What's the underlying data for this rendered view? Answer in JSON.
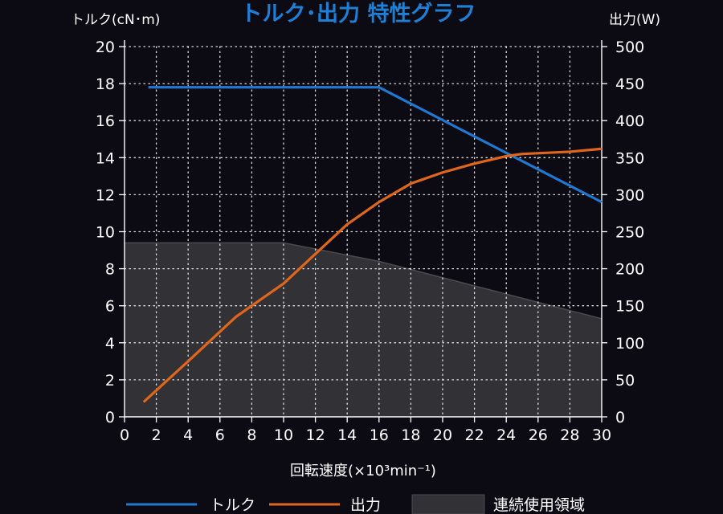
{
  "colors": {
    "background": "#0c0b14",
    "title": "#1d7fd6",
    "torque": "#1f78d1",
    "power": "#e0661b",
    "region_fill": "#323236",
    "region_edge": "#4a4a4f",
    "grid": "#ffffff"
  },
  "chart_data": {
    "type": "line",
    "title": "トルク･出力  特性グラフ",
    "xlabel": "回転速度(×10³min⁻¹)",
    "ylabel_left": "トルク(cN･m)",
    "ylabel_right": "出力(W)",
    "xlim": [
      0,
      30
    ],
    "ylim_left": [
      0,
      20
    ],
    "ylim_right": [
      0,
      500
    ],
    "xticks": [
      0,
      2,
      4,
      6,
      8,
      10,
      12,
      14,
      16,
      18,
      20,
      22,
      24,
      26,
      28,
      30
    ],
    "yticks_left": [
      0,
      2,
      4,
      6,
      8,
      10,
      12,
      14,
      16,
      18,
      20
    ],
    "yticks_right": [
      0,
      50,
      100,
      150,
      200,
      250,
      300,
      350,
      400,
      450,
      500
    ],
    "grid": true,
    "legend_position": "bottom",
    "series": [
      {
        "name": "トルク",
        "axis": "left",
        "x": [
          1.5,
          16,
          30
        ],
        "y": [
          17.8,
          17.8,
          11.6
        ]
      },
      {
        "name": "出力",
        "axis": "right",
        "x": [
          1.2,
          4,
          7,
          10,
          12,
          14,
          16,
          18,
          20,
          22,
          24,
          25,
          28,
          30
        ],
        "y": [
          20,
          75,
          135,
          180,
          220,
          260,
          290,
          315,
          330,
          342,
          352,
          355,
          358,
          362
        ]
      }
    ],
    "region": {
      "name": "連続使用領域",
      "axis": "left",
      "x": [
        0,
        10,
        16,
        30
      ],
      "y": [
        9.4,
        9.4,
        8.4,
        5.3
      ]
    }
  }
}
